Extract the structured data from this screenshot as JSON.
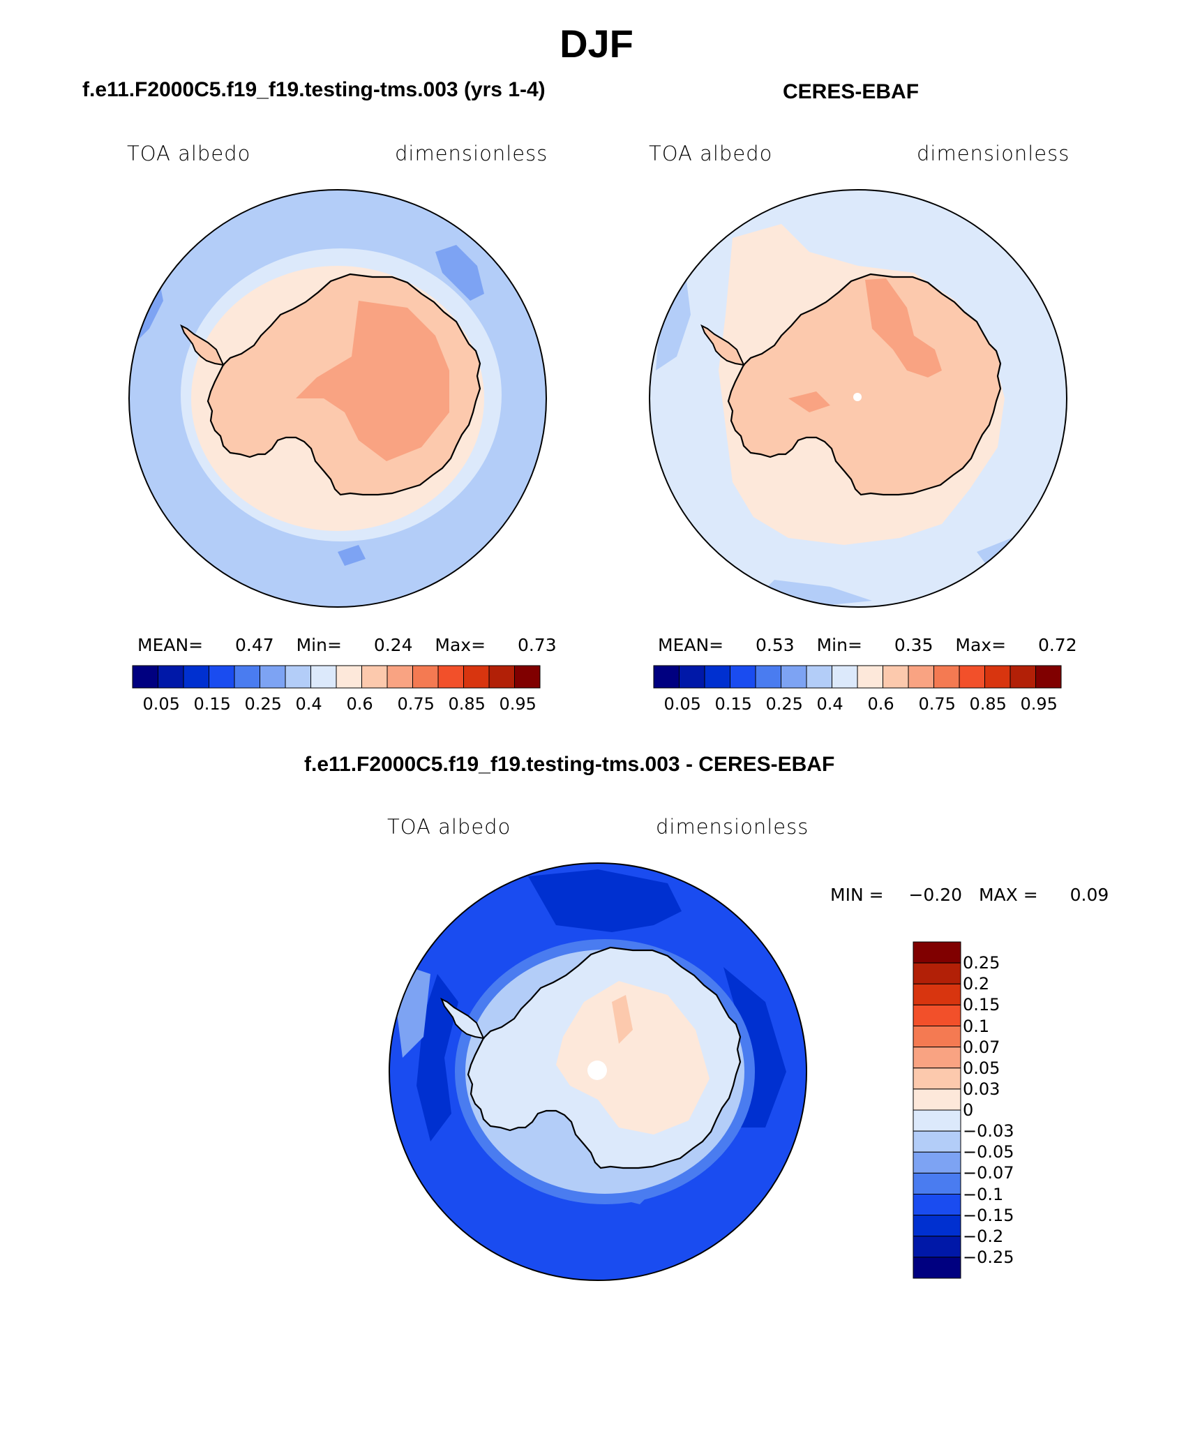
{
  "title": "DJF",
  "panels": [
    {
      "id": "model",
      "title": "f.e11.F2000C5.f19_f19.testing-tms.003 (yrs 1-4)",
      "variable": "TOA albedo",
      "units": "dimensionless",
      "stats": {
        "mean_label": "MEAN=",
        "mean": "0.47",
        "min_label": "Min=",
        "min": "0.24",
        "max_label": "Max=",
        "max": "0.73"
      }
    },
    {
      "id": "obs",
      "title": "CERES-EBAF",
      "variable": "TOA albedo",
      "units": "dimensionless",
      "stats": {
        "mean_label": "MEAN=",
        "mean": "0.53",
        "min_label": "Min=",
        "min": "0.35",
        "max_label": "Max=",
        "max": "0.72"
      }
    }
  ],
  "horizontal_colorbar": {
    "colors": [
      "#000080",
      "#0018a8",
      "#0030d0",
      "#1a4cf0",
      "#4a7cf0",
      "#7da3f3",
      "#b3cdf8",
      "#dce9fb",
      "#fde8da",
      "#fcc9ad",
      "#f9a382",
      "#f47a52",
      "#f2502a",
      "#d8350f",
      "#b22007",
      "#800000"
    ],
    "tick_labels": [
      "0.05",
      "0.15",
      "0.25",
      "0.4",
      "0.6",
      "0.75",
      "0.85",
      "0.95"
    ]
  },
  "difference": {
    "title": "f.e11.F2000C5.f19_f19.testing-tms.003 - CERES-EBAF",
    "variable": "TOA albedo",
    "units": "dimensionless",
    "min_label": "MIN =",
    "min": "−0.20",
    "max_label": "MAX =",
    "max": "0.09",
    "colorbar": {
      "colors_top_to_bottom": [
        "#800000",
        "#b22007",
        "#d8350f",
        "#f2502a",
        "#f47a52",
        "#f9a382",
        "#fcc9ad",
        "#fde8da",
        "#dce9fb",
        "#b3cdf8",
        "#7da3f3",
        "#4a7cf0",
        "#1a4cf0",
        "#0030d0",
        "#0018a8",
        "#000080"
      ],
      "tick_labels": [
        "0.25",
        "0.2",
        "0.15",
        "0.1",
        "0.07",
        "0.05",
        "0.03",
        "0",
        "−0.03",
        "−0.05",
        "−0.07",
        "−0.1",
        "−0.15",
        "−0.2",
        "−0.25"
      ]
    }
  },
  "map_colors": {
    "model_ocean": "#b3cdf8",
    "model_ice_edge": "#dce9fb",
    "model_coast_band": "#fde8da",
    "model_land": "#fcc9ad",
    "model_land_high": "#f9a382",
    "obs_ocean": "#dce9fb",
    "obs_band": "#fde8da",
    "obs_land": "#fcc9ad",
    "obs_land_high": "#f9a382",
    "diff_ocean_deep": "#1a4cf0",
    "diff_ocean_mid": "#4a7cf0",
    "diff_ocean_dark": "#0030d0",
    "diff_coast": "#b3cdf8",
    "diff_land": "#dce9fb",
    "diff_land_pos": "#fde8da",
    "diff_land_pos2": "#fcc9ad"
  }
}
